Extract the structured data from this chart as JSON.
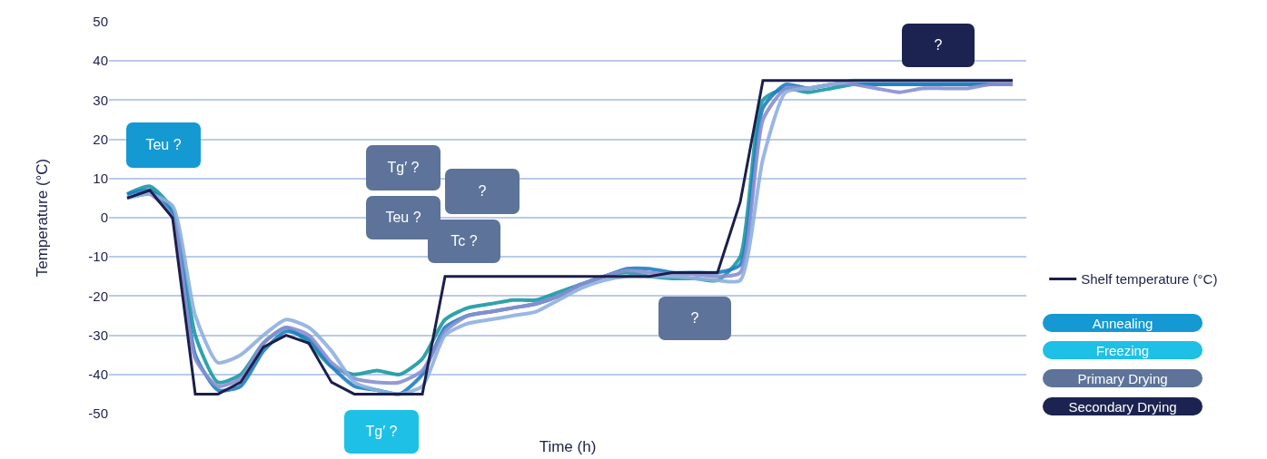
{
  "chart_data": {
    "type": "line",
    "xlabel": "Time (h)",
    "ylabel": "Temperature (°C)",
    "categories": [
      null,
      null,
      null,
      null,
      null,
      null,
      null,
      null,
      null,
      null,
      null,
      null,
      null,
      null,
      null,
      null,
      null,
      null,
      null,
      null,
      null,
      null,
      null,
      null,
      null,
      null,
      null,
      null,
      null,
      null,
      null,
      null,
      null,
      null,
      null,
      null,
      null,
      null,
      null,
      null
    ],
    "series": [
      {
        "name": "Shelf temperature (°C)",
        "color": "#1c1f4a",
        "values": [
          5,
          7,
          0,
          -45,
          -45,
          -42,
          -33,
          -30,
          -32,
          -42,
          -45,
          -45,
          -45,
          -45,
          -15,
          -15,
          -15,
          -15,
          -15,
          -15,
          -15,
          -15,
          -15,
          -15,
          -14,
          -14,
          -14,
          4,
          35,
          35,
          35,
          35,
          35,
          35,
          35,
          35,
          35,
          35,
          35,
          35
        ]
      },
      {
        "color": "#1a9aa0",
        "values": [
          6,
          8,
          2,
          -30,
          -42,
          -40,
          -32,
          -28,
          -32,
          -38,
          -40,
          -39,
          -40,
          -36,
          -26,
          -23,
          -22,
          -21,
          -21,
          -19,
          -17,
          -15,
          -14,
          -15,
          -15.5,
          -15.5,
          -16,
          -10,
          30,
          33,
          32,
          33,
          34,
          34,
          34,
          34,
          34,
          34,
          34,
          34
        ]
      },
      {
        "color": "#1f7fc4",
        "values": [
          6,
          7,
          1,
          -35,
          -44,
          -43,
          -34,
          -29,
          -31,
          -38,
          -43,
          -44,
          -45,
          -40,
          -28,
          -25,
          -24,
          -23,
          -22,
          -20,
          -17,
          -15,
          -13,
          -13,
          -14,
          -14,
          -14,
          -12,
          28,
          34,
          33,
          34,
          34,
          34,
          34,
          34,
          34,
          34,
          34,
          34
        ]
      },
      {
        "color": "#8a8fd0",
        "values": [
          5,
          6,
          0,
          -36,
          -43,
          -41,
          -32,
          -28,
          -30,
          -37,
          -41,
          -42,
          -42,
          -39,
          -29,
          -25,
          -24,
          -23,
          -22,
          -20,
          -17,
          -15,
          -13.5,
          -14,
          -14.5,
          -14.5,
          -15,
          -14,
          25,
          33,
          33,
          34,
          34,
          33,
          32,
          33,
          33,
          33,
          34,
          34
        ]
      },
      {
        "color": "#8fb0e0",
        "values": [
          5,
          6,
          3,
          -25,
          -37,
          -35,
          -30,
          -26,
          -28,
          -34,
          -42,
          -44,
          -45,
          -43,
          -30,
          -27,
          -26,
          -25,
          -24,
          -21,
          -18,
          -16,
          -15,
          -15,
          -15,
          -15.5,
          -16,
          -16,
          15,
          32,
          33,
          34,
          35,
          35,
          35,
          35,
          35,
          35,
          35,
          35
        ]
      }
    ],
    "ylim": [
      -50,
      50
    ],
    "yticks": [
      -50,
      -40,
      -30,
      -20,
      -10,
      0,
      10,
      20,
      30,
      40,
      50
    ],
    "grid": "y",
    "legend": "right",
    "line_style": "solid",
    "marker": "none",
    "annotations": [
      "Teu ?",
      "Tg′ ?",
      "Teu ?",
      "?",
      "Tc ?",
      "?",
      "?",
      "Tg′ ?",
      "Annealing",
      "Freezing",
      "Primary Drying",
      "Secondary Drying"
    ]
  }
}
